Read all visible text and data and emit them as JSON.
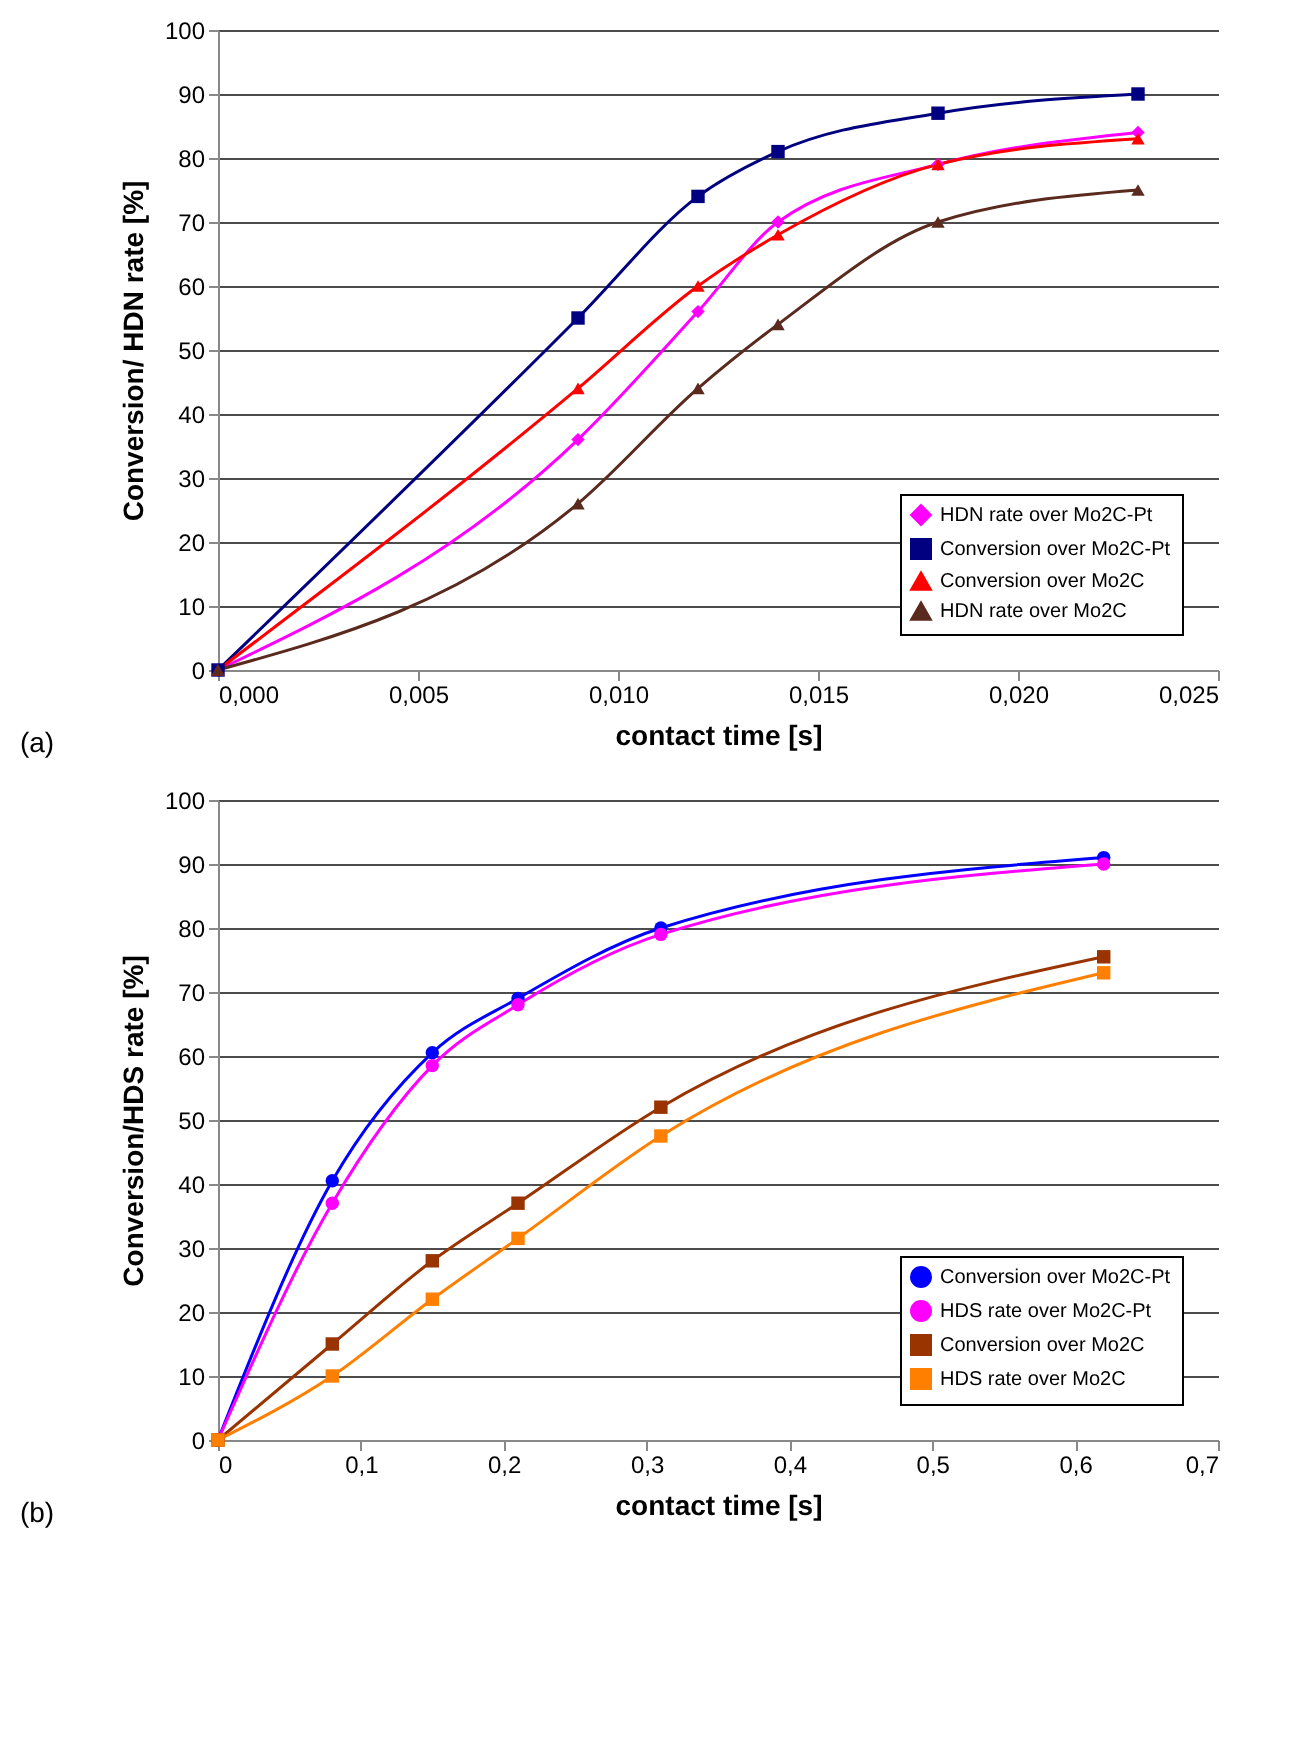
{
  "chart_data": [
    {
      "type": "line",
      "xlabel": "contact time [s]",
      "ylabel": "Conversion/  HDN rate [%]",
      "annotations": [
        "(a)"
      ],
      "xlim": [
        0,
        0.025
      ],
      "xticks": [
        {
          "value": 0,
          "label": "0,000"
        },
        {
          "value": 0.005,
          "label": "0,005"
        },
        {
          "value": 0.01,
          "label": "0,010"
        },
        {
          "value": 0.015,
          "label": "0,015"
        },
        {
          "value": 0.02,
          "label": "0,020"
        },
        {
          "value": 0.025,
          "label": "0,025"
        }
      ],
      "ylim": [
        0,
        100
      ],
      "yticks": [
        0,
        10,
        20,
        30,
        40,
        50,
        60,
        70,
        80,
        90,
        100
      ],
      "grid": "y",
      "legend": "right",
      "x": [
        0,
        0.009,
        0.012,
        0.014,
        0.018,
        0.023
      ],
      "series": [
        {
          "name": "HDN rate over Mo2C-Pt",
          "color": "#ff00ff",
          "marker": "diamond",
          "values": [
            0,
            36,
            56,
            70,
            79,
            84
          ]
        },
        {
          "name": "Conversion over Mo2C-Pt",
          "color": "#000080",
          "marker": "square",
          "values": [
            0,
            55,
            74,
            81,
            87,
            90
          ]
        },
        {
          "name": "Conversion over Mo2C",
          "color": "#ff0000",
          "marker": "triangle",
          "values": [
            0,
            44,
            60,
            68,
            79,
            83
          ]
        },
        {
          "name": "HDN rate over Mo2C",
          "color": "#5a2a1e",
          "marker": "triangle",
          "values": [
            0,
            26,
            44,
            54,
            70,
            75
          ]
        }
      ]
    },
    {
      "type": "line",
      "xlabel": "contact time [s]",
      "ylabel": "Conversion/HDS rate [%]",
      "annotations": [
        "(b)"
      ],
      "xlim": [
        0,
        0.7
      ],
      "xticks": [
        {
          "value": 0,
          "label": "0"
        },
        {
          "value": 0.1,
          "label": "0,1"
        },
        {
          "value": 0.2,
          "label": "0,2"
        },
        {
          "value": 0.3,
          "label": "0,3"
        },
        {
          "value": 0.4,
          "label": "0,4"
        },
        {
          "value": 0.5,
          "label": "0,5"
        },
        {
          "value": 0.6,
          "label": "0,6"
        },
        {
          "value": 0.7,
          "label": "0,7"
        }
      ],
      "ylim": [
        0,
        100
      ],
      "yticks": [
        0,
        10,
        20,
        30,
        40,
        50,
        60,
        70,
        80,
        90,
        100
      ],
      "grid": "y",
      "legend": "right",
      "x": [
        0,
        0.08,
        0.15,
        0.21,
        0.31,
        0.62
      ],
      "series": [
        {
          "name": "Conversion over Mo2C-Pt",
          "color": "#0000ff",
          "marker": "circle",
          "values": [
            0,
            40.5,
            60.5,
            69,
            80,
            91
          ]
        },
        {
          "name": "HDS rate over Mo2C-Pt",
          "color": "#ff00ff",
          "marker": "circle",
          "values": [
            0,
            37,
            58.5,
            68,
            79,
            90
          ]
        },
        {
          "name": "Conversion  over Mo2C",
          "color": "#993300",
          "marker": "square",
          "values": [
            0,
            15,
            28,
            37,
            52,
            75.5
          ]
        },
        {
          "name": "HDS rate over Mo2C",
          "color": "#ff8000",
          "marker": "square",
          "values": [
            0,
            10,
            22,
            31.5,
            47.5,
            73
          ]
        }
      ]
    }
  ]
}
